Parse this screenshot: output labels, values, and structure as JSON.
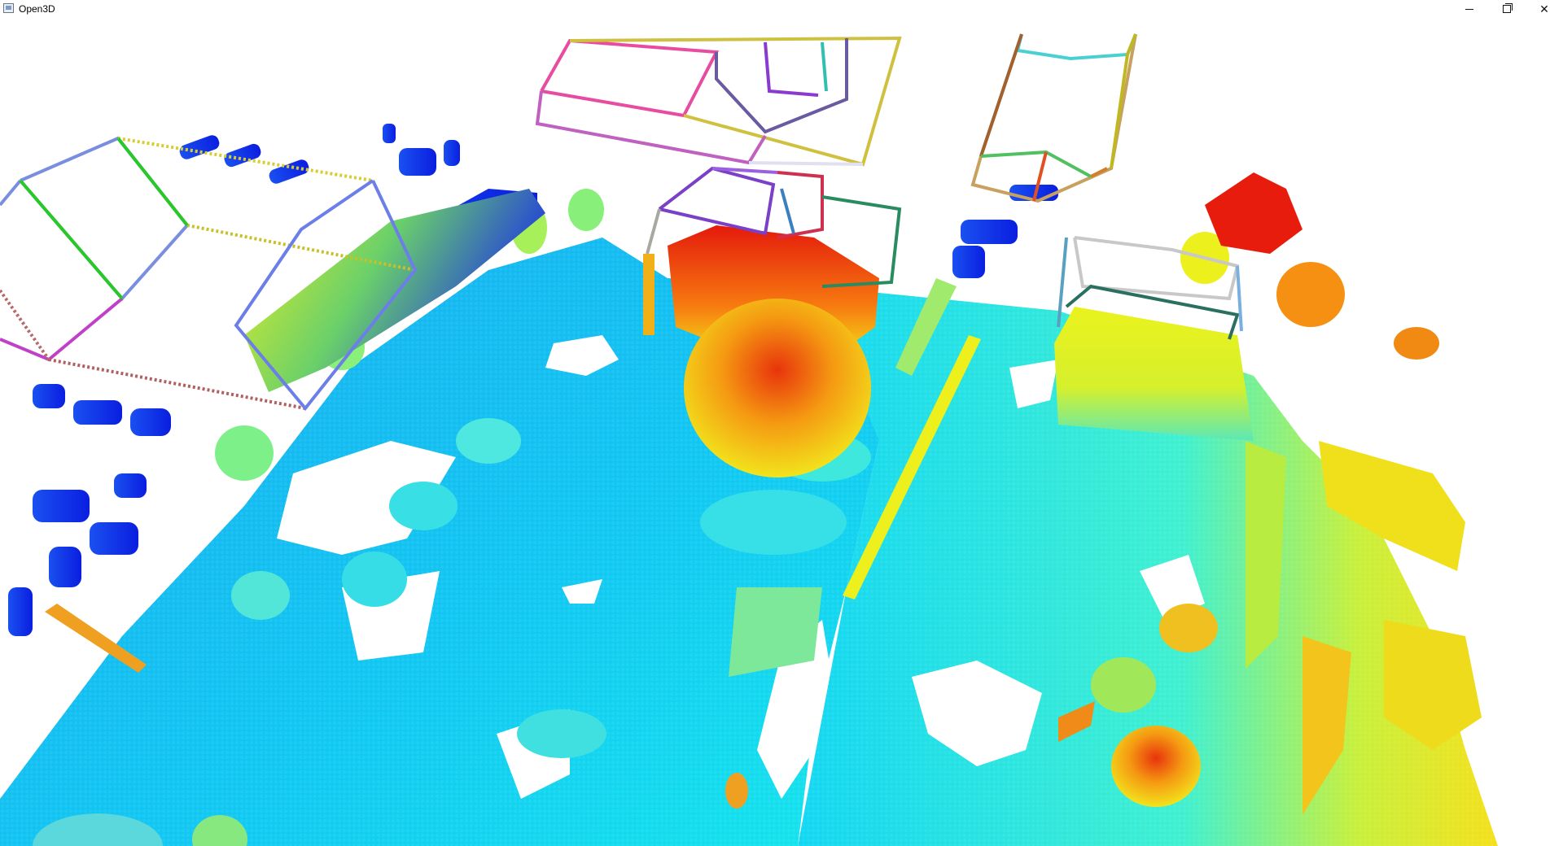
{
  "window": {
    "title": "Open3D",
    "controls": {
      "minimize": "minimize-icon",
      "maximize": "restore-icon",
      "close": "close-icon"
    }
  },
  "viewer": {
    "content": "point-cloud-with-bounding-boxes",
    "colormap": "jet",
    "colors": {
      "low": "#0a1ee6",
      "mid_low": "#12b5f0",
      "mid": "#22e6e6",
      "mid_high": "#e8f01c",
      "high": "#e61b0a"
    }
  }
}
